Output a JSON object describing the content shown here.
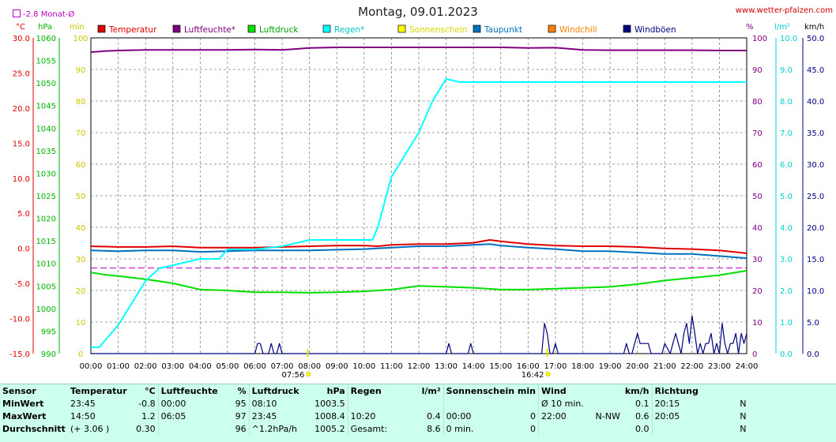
{
  "header": {
    "title": "Montag, 09.01.2023",
    "site": "www.wetter-pfalzen.com",
    "monthly_avg_label": "-2.8 Monat-Ø"
  },
  "chart_data": {
    "type": "line",
    "title": "Montag, 09.01.2023",
    "x_ticks": [
      "00:00",
      "01:00",
      "02:00",
      "03:00",
      "04:00",
      "05:00",
      "06:00",
      "07:00",
      "08:00",
      "09:00",
      "10:00",
      "11:00",
      "12:00",
      "13:00",
      "14:00",
      "15:00",
      "16:00",
      "17:00",
      "18:00",
      "19:00",
      "20:00",
      "21:00",
      "22:00",
      "23:00",
      "24:00"
    ],
    "sunrise": "07:56",
    "sunset": "16:42",
    "axes": {
      "temp": {
        "unit": "°C",
        "range": [
          -15,
          30
        ],
        "ticks": [
          "30.0",
          "25.0",
          "20.0",
          "15.0",
          "10.0",
          "5.0",
          "0.0",
          "-5.0",
          "-10.0",
          "-15.0"
        ],
        "color": "#e00000"
      },
      "pressure": {
        "unit": "hPa",
        "range": [
          990,
          1060
        ],
        "ticks": [
          "1060",
          "1055",
          "1050",
          "1045",
          "1040",
          "1035",
          "1030",
          "1025",
          "1020",
          "1015",
          "1010",
          "1005",
          "1000",
          "995",
          "990"
        ],
        "color": "#00b000"
      },
      "minutes": {
        "unit": "min",
        "range": [
          0,
          100
        ],
        "ticks": [
          "100",
          "90",
          "80",
          "70",
          "60",
          "50",
          "40",
          "30",
          "20",
          "10",
          "0"
        ],
        "color": "#c8c800"
      },
      "humidity": {
        "unit": "%",
        "range": [
          0,
          100
        ],
        "ticks": [
          "100",
          "90",
          "80",
          "70",
          "60",
          "50",
          "40",
          "30",
          "20",
          "10",
          "0"
        ],
        "color": "#800080"
      },
      "rain": {
        "unit": "l/m²",
        "range": [
          0,
          10
        ],
        "ticks": [
          "10.0",
          "9.0",
          "8.0",
          "7.0",
          "6.0",
          "5.0",
          "4.0",
          "3.0",
          "2.0",
          "1.0",
          "0.0"
        ],
        "color": "#00d0d0"
      },
      "wind": {
        "unit": "km/h",
        "range": [
          0,
          50
        ],
        "ticks": [
          "50.0",
          "45.0",
          "40.0",
          "35.0",
          "30.0",
          "25.0",
          "20.0",
          "15.0",
          "10.0",
          "5.0",
          "0.0"
        ],
        "color": "#000080"
      }
    },
    "legend": [
      {
        "name": "Temperatur",
        "color": "#e00000"
      },
      {
        "name": "Luftfeuchte*",
        "color": "#800080"
      },
      {
        "name": "Luftdruck",
        "color": "#00e000"
      },
      {
        "name": "Regen*",
        "color": "#00ffff"
      },
      {
        "name": "Sonnenschein",
        "color": "#ffff00"
      },
      {
        "name": "Taupunkt",
        "color": "#0070c0"
      },
      {
        "name": "Windchill",
        "color": "#ff8000"
      },
      {
        "name": "Windböen",
        "color": "#000080"
      }
    ],
    "monthly_avg_temp": -2.8,
    "series": [
      {
        "name": "Temperatur",
        "axis": "temp",
        "color": "#e00000",
        "x": [
          0,
          1,
          2,
          3,
          4,
          5,
          6,
          7,
          8,
          9,
          10,
          10.5,
          11,
          12,
          13,
          14,
          14.6,
          15,
          16,
          17,
          18,
          19,
          20,
          21,
          22,
          23,
          24
        ],
        "y": [
          0.3,
          0.2,
          0.2,
          0.3,
          0.1,
          0.1,
          0.1,
          0.2,
          0.3,
          0.4,
          0.4,
          0.3,
          0.5,
          0.6,
          0.6,
          0.8,
          1.2,
          1.0,
          0.6,
          0.4,
          0.3,
          0.3,
          0.2,
          0.0,
          -0.1,
          -0.3,
          -0.7
        ]
      },
      {
        "name": "Taupunkt",
        "axis": "temp",
        "color": "#0070c0",
        "x": [
          0,
          1,
          2,
          3,
          4,
          5,
          6,
          7,
          8,
          9,
          10,
          11,
          12,
          13,
          14,
          14.6,
          15,
          16,
          17,
          18,
          19,
          20,
          21,
          22,
          23,
          24
        ],
        "y": [
          -0.3,
          -0.4,
          -0.3,
          -0.3,
          -0.5,
          -0.4,
          -0.3,
          -0.3,
          -0.3,
          -0.2,
          -0.1,
          0.1,
          0.3,
          0.3,
          0.5,
          0.6,
          0.4,
          0.1,
          -0.1,
          -0.4,
          -0.4,
          -0.6,
          -0.8,
          -0.8,
          -1.1,
          -1.4
        ]
      },
      {
        "name": "Luftfeuchte*",
        "axis": "humidity",
        "color": "#800080",
        "x": [
          0,
          0.5,
          1,
          2,
          3,
          4,
          5,
          6,
          7,
          8,
          9,
          10,
          11,
          12,
          13,
          14,
          15,
          16,
          17,
          18,
          19,
          20,
          21,
          22,
          23,
          24
        ],
        "y": [
          95.5,
          95.8,
          96,
          96.2,
          96.2,
          96.2,
          96.2,
          96.3,
          96.2,
          96.8,
          97,
          97,
          97,
          97,
          97,
          97,
          97,
          96.8,
          96.9,
          96.2,
          96.1,
          96.1,
          96.1,
          96.1,
          96,
          96
        ]
      },
      {
        "name": "Luftdruck",
        "axis": "pressure",
        "color": "#00e000",
        "x": [
          0,
          0.5,
          1,
          2,
          3,
          4,
          5,
          6,
          7,
          8,
          9,
          10,
          11,
          12,
          13,
          14,
          15,
          16,
          17,
          18,
          19,
          20,
          21,
          22,
          23,
          24
        ],
        "y": [
          1008.0,
          1007.5,
          1007.2,
          1006.5,
          1005.6,
          1004.2,
          1004.0,
          1003.6,
          1003.6,
          1003.5,
          1003.6,
          1003.8,
          1004.2,
          1005.0,
          1004.8,
          1004.6,
          1004.2,
          1004.2,
          1004.4,
          1004.6,
          1004.8,
          1005.4,
          1006.2,
          1006.8,
          1007.4,
          1008.4
        ]
      },
      {
        "name": "Regen*",
        "axis": "rain",
        "color": "#00ffff",
        "x": [
          0,
          0.3,
          0.5,
          1,
          1.5,
          2,
          2.5,
          3,
          4,
          4.7,
          5,
          6,
          7,
          8,
          9,
          9.5,
          10,
          10.3,
          10.5,
          11,
          11.5,
          12,
          12.5,
          13,
          13.5,
          14,
          15,
          16,
          17,
          18,
          19,
          20,
          21,
          22,
          23,
          24
        ],
        "y": [
          0.2,
          0.2,
          0.4,
          0.9,
          1.6,
          2.3,
          2.7,
          2.8,
          3.0,
          3.0,
          3.3,
          3.3,
          3.4,
          3.6,
          3.6,
          3.6,
          3.6,
          3.6,
          4.0,
          5.6,
          6.3,
          7.0,
          8.0,
          8.7,
          8.6,
          8.6,
          8.6,
          8.6,
          8.6,
          8.6,
          8.6,
          8.6,
          8.6,
          8.6,
          8.6,
          8.6
        ]
      },
      {
        "name": "Windböen",
        "axis": "wind",
        "color": "#000080",
        "x": [
          0,
          6.0,
          6.1,
          6.2,
          6.3,
          6.5,
          6.6,
          6.7,
          6.8,
          6.9,
          7.0,
          7.1,
          13.0,
          13.1,
          13.2,
          13.8,
          13.9,
          14.0,
          16.5,
          16.6,
          16.7,
          16.8,
          16.9,
          17.0,
          17.1,
          17.2,
          19.5,
          19.6,
          19.7,
          19.8,
          19.9,
          20.0,
          20.1,
          20.2,
          20.3,
          20.4,
          20.5,
          20.6,
          20.9,
          21.0,
          21.2,
          21.3,
          21.4,
          21.5,
          21.6,
          21.7,
          21.8,
          21.9,
          22.0,
          22.1,
          22.2,
          22.3,
          22.4,
          22.5,
          22.6,
          22.7,
          22.8,
          22.9,
          23.0,
          23.1,
          23.2,
          23.3,
          23.4,
          23.5,
          23.6,
          23.7,
          23.8,
          23.9,
          24.0
        ],
        "y": [
          0,
          0,
          1.6,
          1.6,
          0,
          0,
          1.6,
          0,
          0,
          1.6,
          0,
          0,
          0,
          1.6,
          0,
          0,
          1.6,
          0,
          0,
          4.8,
          3.2,
          0,
          0,
          1.6,
          0,
          0,
          0,
          1.6,
          0,
          0,
          1.6,
          3.2,
          1.6,
          1.6,
          1.6,
          1.6,
          0,
          0,
          0,
          1.6,
          0,
          1.6,
          3.2,
          1.6,
          0,
          3.2,
          4.8,
          1.6,
          6.0,
          3.2,
          0,
          1.6,
          0,
          1.6,
          1.6,
          3.2,
          0,
          1.6,
          0,
          4.8,
          1.6,
          0,
          1.6,
          1.6,
          3.2,
          0,
          3.2,
          1.6,
          3.2
        ]
      }
    ]
  },
  "stats": {
    "sensor": {
      "label": "Sensor",
      "rows": [
        "MinWert",
        "MaxWert",
        "Durchschnitt"
      ]
    },
    "temperatur": {
      "label": "Temperatur",
      "unit": "°C",
      "rows": [
        [
          "23:45",
          "-0.8"
        ],
        [
          "14:50",
          "1.2"
        ],
        [
          "(+ 3.06 )",
          "0.30"
        ]
      ]
    },
    "luftfeuchte": {
      "label": "Luftfeuchte",
      "unit": "%",
      "rows": [
        [
          "00:00",
          "95"
        ],
        [
          "06:05",
          "97"
        ],
        [
          "",
          "96"
        ]
      ]
    },
    "luftdruck": {
      "label": "Luftdruck",
      "unit": "hPa",
      "rows": [
        [
          "08:10",
          "1003.5"
        ],
        [
          "23:45",
          "1008.4"
        ],
        [
          "^1.2hPa/h",
          "1005.2"
        ]
      ]
    },
    "regen": {
      "label": "Regen",
      "unit": "l/m²",
      "rows": [
        [
          "",
          ""
        ],
        [
          "10:20",
          "0.4"
        ],
        [
          "Gesamt:",
          "8.6"
        ]
      ]
    },
    "sonnenschein": {
      "label": "Sonnenschein min",
      "rows": [
        [
          "",
          ""
        ],
        [
          "00:00",
          "0"
        ],
        [
          "0 min.",
          "0"
        ]
      ]
    },
    "wind": {
      "label": "Wind",
      "unit": "km/h",
      "rows": [
        [
          "Ø 10 min.",
          "",
          "0.1"
        ],
        [
          "22:00",
          "N-NW",
          "0.6"
        ],
        [
          "",
          "",
          "0.0"
        ]
      ]
    },
    "richtung": {
      "label": "Richtung",
      "rows": [
        [
          "20:15",
          "N"
        ],
        [
          "20:05",
          "N"
        ],
        [
          "",
          "N"
        ]
      ]
    }
  }
}
